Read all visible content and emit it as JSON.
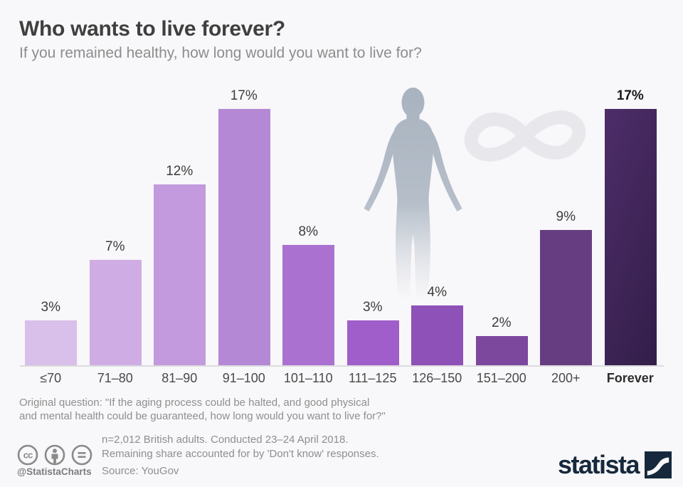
{
  "chart_data": {
    "type": "bar",
    "title": "Who wants to live forever?",
    "subtitle": "If you remained healthy, how long would you want to live for?",
    "categories": [
      "≤70",
      "71–80",
      "81–90",
      "91–100",
      "101–110",
      "111–125",
      "126–150",
      "151–200",
      "200+",
      "Forever"
    ],
    "values": [
      3,
      7,
      12,
      17,
      8,
      3,
      4,
      2,
      9,
      17
    ],
    "value_labels": [
      "3%",
      "7%",
      "12%",
      "17%",
      "8%",
      "3%",
      "4%",
      "2%",
      "9%",
      "17%"
    ],
    "unit": "%",
    "ylim": [
      0,
      18
    ],
    "grid": false,
    "legend": "none",
    "highlight_index": 9,
    "bar_colors": [
      "#d8c0ea",
      "#cfade4",
      "#c29add",
      "#b588d6",
      "#ab71d1",
      "#9f5eca",
      "#8e51b7",
      "#7c489d",
      "#673d82",
      "linear-gradient(110deg,#4e2d69,#321e49)"
    ]
  },
  "footer": {
    "original_question_line1": "Original question: \"If the aging process could be halted, and good physical",
    "original_question_line2": "and mental health could be guaranteed, how long would you want to live for?\"",
    "note_line1": "n=2,012 British adults. Conducted 23–24 April 2018.",
    "note_line2": "Remaining share accounted for by 'Don't know' responses.",
    "source": "Source: YouGov",
    "handle": "@StatistaCharts"
  },
  "branding": {
    "logo_text": "statista",
    "brand_navy": "#16293c"
  },
  "icons": {
    "license": [
      "cc-icon",
      "cc-by-icon",
      "cc-nd-icon"
    ],
    "decorations": [
      "human-silhouette-icon",
      "infinity-icon"
    ],
    "brand": "statista-logo-mark"
  },
  "colors": {
    "background": "#f8f7f9",
    "axis_line": "#dcdbde",
    "title_text": "#3f3f3f",
    "subtitle_text": "#8d8d8d",
    "footer_text": "#8f8f8f",
    "silhouette_gray": "#aab4c0",
    "infinity_gray": "#e8e7eb"
  }
}
